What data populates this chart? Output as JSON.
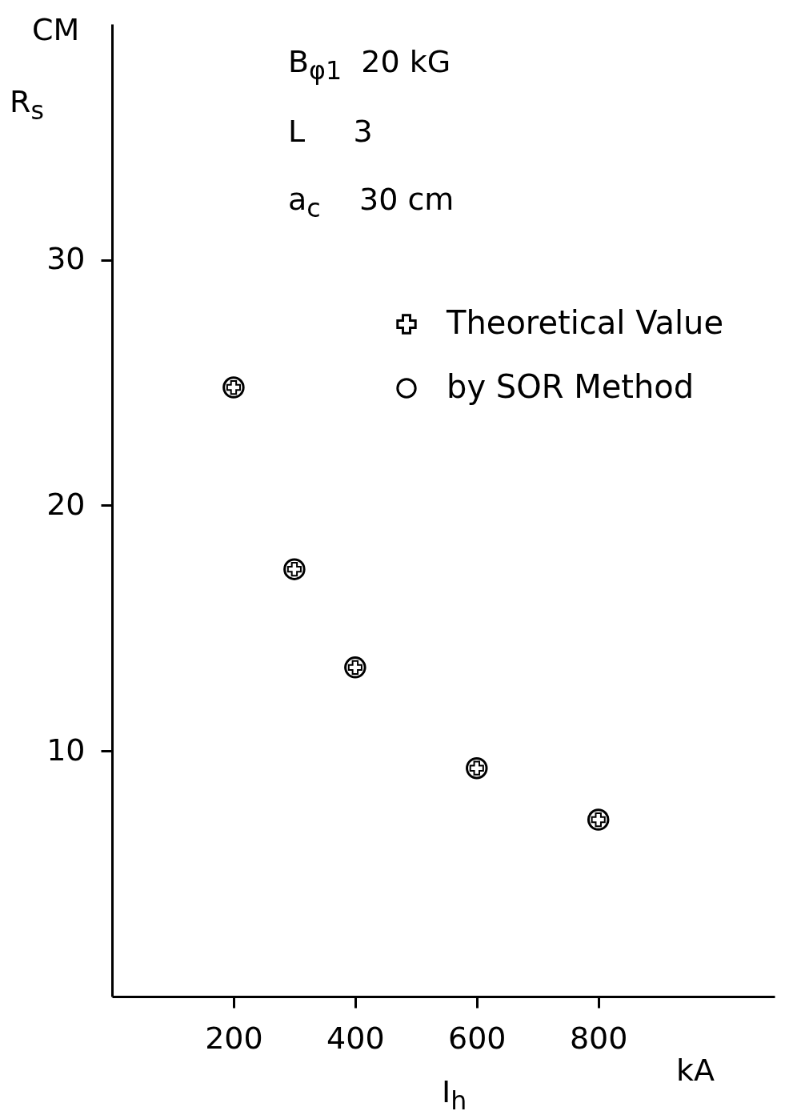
{
  "chart_data": {
    "type": "scatter",
    "ylabel": "R$_{s}$",
    "xlabel": "I$_{h}$",
    "annotations": [
      "B$_{φ1}$  20 kG",
      "L     3",
      "a$_{c}$    30 cm",
      "CM",
      "kA"
    ],
    "x": [
      200,
      300,
      400,
      600,
      800
    ],
    "series": [
      {
        "name": "Theoretical Value",
        "color": "#000000",
        "marker": "cross",
        "values": [
          24.8,
          17.4,
          13.4,
          9.3,
          7.2
        ]
      },
      {
        "name": "by SOR Method",
        "color": "#000000",
        "marker": "circle",
        "values": [
          24.8,
          17.4,
          13.4,
          9.3,
          7.2
        ]
      }
    ],
    "xlim": [
      0,
      1090
    ],
    "ylim": [
      0,
      39.6
    ],
    "xticks": [
      200,
      400,
      600,
      800
    ],
    "yticks": [
      10,
      20,
      30
    ],
    "grid": false,
    "legend": "top right"
  }
}
